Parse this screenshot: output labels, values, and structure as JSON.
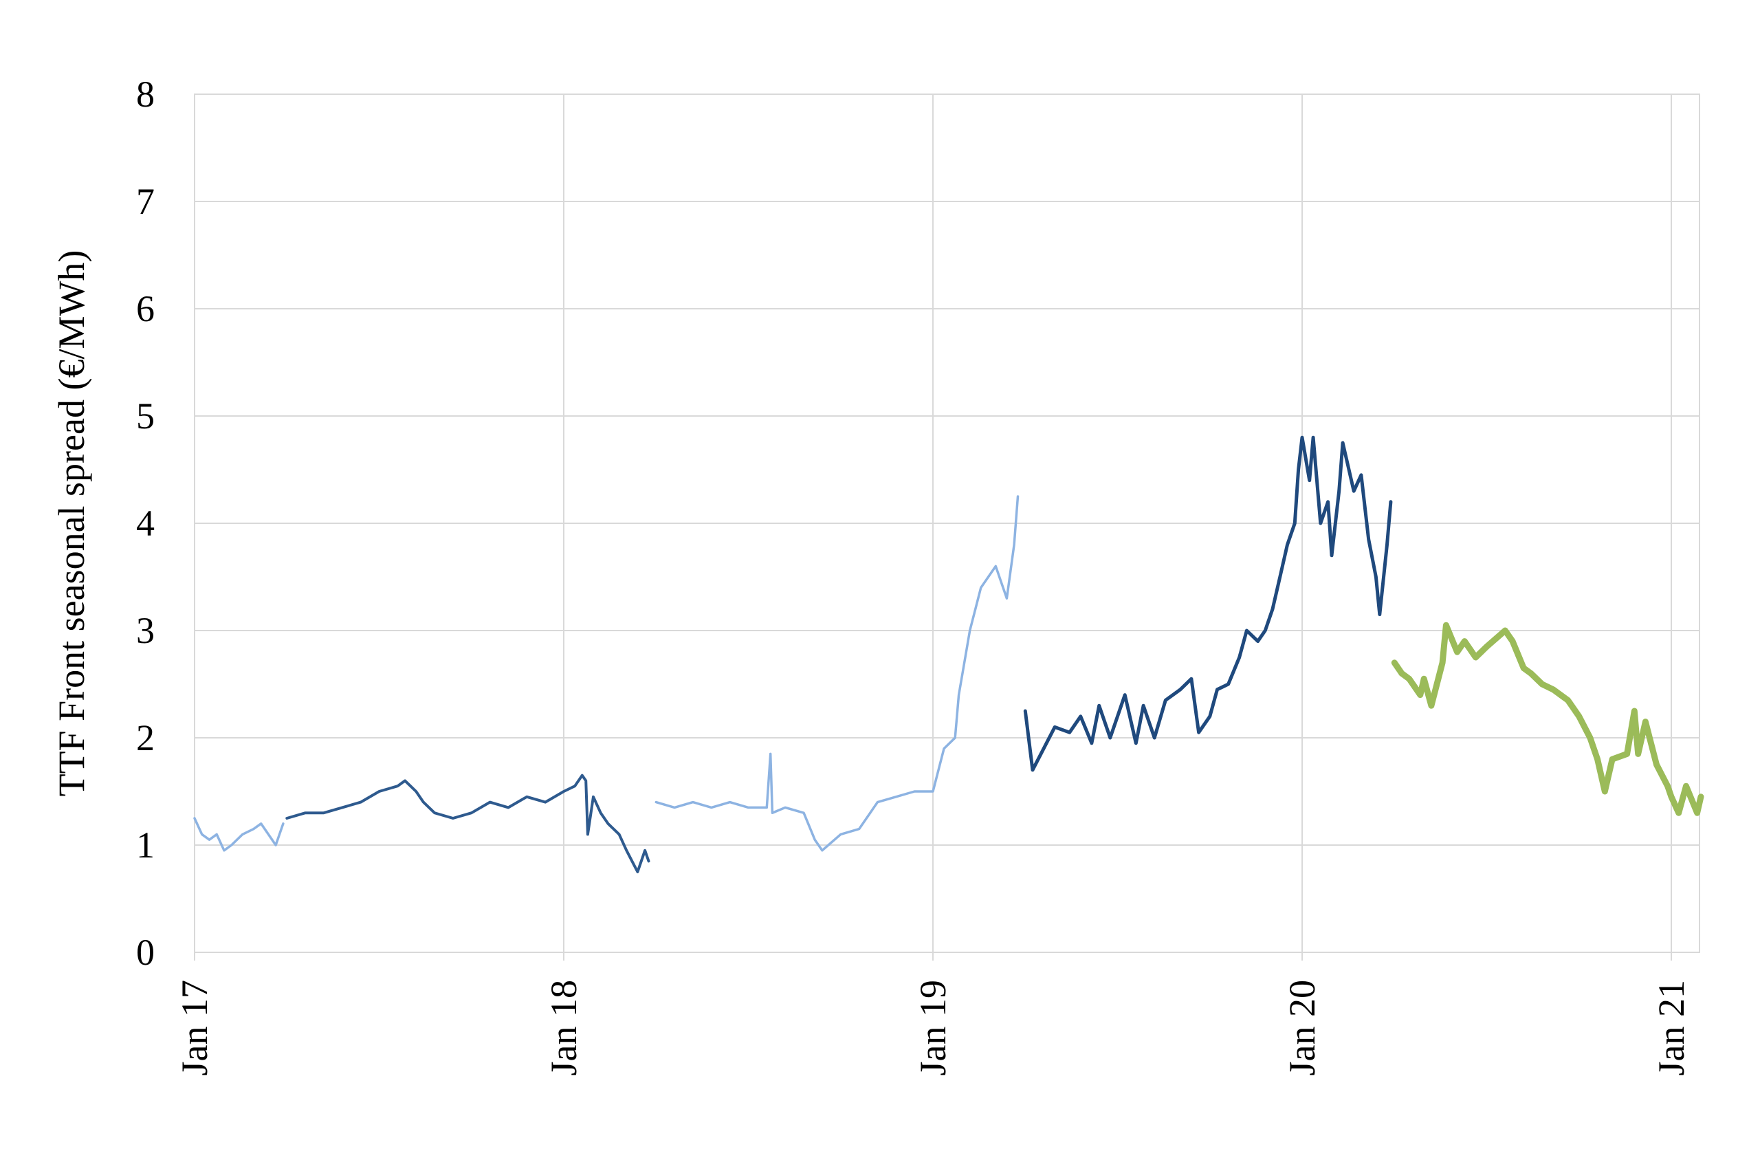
{
  "chart_data": {
    "type": "line",
    "title": "",
    "xlabel": "",
    "ylabel": "TTF Front seasonal spread (€/MWh)",
    "xlim": [
      2017.0,
      2021.08
    ],
    "ylim": [
      0,
      8
    ],
    "grid": true,
    "legend": "none",
    "yticks": [
      0,
      1,
      2,
      3,
      4,
      5,
      6,
      7,
      8
    ],
    "xticks": [
      {
        "value": 2017.0,
        "label": "Jan 17"
      },
      {
        "value": 2018.0,
        "label": "Jan 18"
      },
      {
        "value": 2019.0,
        "label": "Jan 19"
      },
      {
        "value": 2020.0,
        "label": "Jan 20"
      },
      {
        "value": 2021.0,
        "label": "Jan 21"
      }
    ],
    "series": [
      {
        "name": "segment-1",
        "color": "#8db3e2",
        "points": [
          [
            2017.0,
            1.25
          ],
          [
            2017.02,
            1.1
          ],
          [
            2017.04,
            1.05
          ],
          [
            2017.06,
            1.1
          ],
          [
            2017.08,
            0.95
          ],
          [
            2017.1,
            1.0
          ],
          [
            2017.13,
            1.1
          ],
          [
            2017.16,
            1.15
          ],
          [
            2017.18,
            1.2
          ],
          [
            2017.2,
            1.1
          ],
          [
            2017.22,
            1.0
          ],
          [
            2017.24,
            1.2
          ]
        ]
      },
      {
        "name": "segment-2",
        "color": "#2e5a8e",
        "points": [
          [
            2017.25,
            1.25
          ],
          [
            2017.3,
            1.3
          ],
          [
            2017.35,
            1.3
          ],
          [
            2017.4,
            1.35
          ],
          [
            2017.45,
            1.4
          ],
          [
            2017.5,
            1.5
          ],
          [
            2017.55,
            1.55
          ],
          [
            2017.57,
            1.6
          ],
          [
            2017.6,
            1.5
          ],
          [
            2017.62,
            1.4
          ],
          [
            2017.65,
            1.3
          ],
          [
            2017.7,
            1.25
          ],
          [
            2017.75,
            1.3
          ],
          [
            2017.8,
            1.4
          ],
          [
            2017.85,
            1.35
          ],
          [
            2017.9,
            1.45
          ],
          [
            2017.95,
            1.4
          ],
          [
            2018.0,
            1.5
          ],
          [
            2018.03,
            1.55
          ],
          [
            2018.05,
            1.65
          ],
          [
            2018.06,
            1.6
          ],
          [
            2018.065,
            1.1
          ],
          [
            2018.08,
            1.45
          ],
          [
            2018.1,
            1.3
          ],
          [
            2018.12,
            1.2
          ],
          [
            2018.15,
            1.1
          ],
          [
            2018.17,
            0.95
          ],
          [
            2018.2,
            0.75
          ],
          [
            2018.22,
            0.95
          ],
          [
            2018.23,
            0.85
          ]
        ]
      },
      {
        "name": "segment-3",
        "color": "#8db3e2",
        "points": [
          [
            2018.25,
            1.4
          ],
          [
            2018.3,
            1.35
          ],
          [
            2018.35,
            1.4
          ],
          [
            2018.4,
            1.35
          ],
          [
            2018.45,
            1.4
          ],
          [
            2018.5,
            1.35
          ],
          [
            2018.55,
            1.35
          ],
          [
            2018.56,
            1.85
          ],
          [
            2018.565,
            1.3
          ],
          [
            2018.6,
            1.35
          ],
          [
            2018.65,
            1.3
          ],
          [
            2018.68,
            1.05
          ],
          [
            2018.7,
            0.95
          ],
          [
            2018.75,
            1.1
          ],
          [
            2018.8,
            1.15
          ],
          [
            2018.83,
            1.3
          ],
          [
            2018.85,
            1.4
          ],
          [
            2018.9,
            1.45
          ],
          [
            2018.95,
            1.5
          ],
          [
            2019.0,
            1.5
          ],
          [
            2019.03,
            1.9
          ],
          [
            2019.06,
            2.0
          ],
          [
            2019.07,
            2.4
          ],
          [
            2019.1,
            3.0
          ],
          [
            2019.13,
            3.4
          ],
          [
            2019.17,
            3.6
          ],
          [
            2019.2,
            3.3
          ],
          [
            2019.22,
            3.8
          ],
          [
            2019.23,
            4.25
          ]
        ]
      },
      {
        "name": "segment-4",
        "color": "#1f497d",
        "points": [
          [
            2019.25,
            2.25
          ],
          [
            2019.27,
            1.7
          ],
          [
            2019.3,
            1.9
          ],
          [
            2019.33,
            2.1
          ],
          [
            2019.37,
            2.05
          ],
          [
            2019.4,
            2.2
          ],
          [
            2019.43,
            1.95
          ],
          [
            2019.45,
            2.3
          ],
          [
            2019.48,
            2.0
          ],
          [
            2019.52,
            2.4
          ],
          [
            2019.55,
            1.95
          ],
          [
            2019.57,
            2.3
          ],
          [
            2019.6,
            2.0
          ],
          [
            2019.63,
            2.35
          ],
          [
            2019.67,
            2.45
          ],
          [
            2019.7,
            2.55
          ],
          [
            2019.72,
            2.05
          ],
          [
            2019.75,
            2.2
          ],
          [
            2019.77,
            2.45
          ],
          [
            2019.8,
            2.5
          ],
          [
            2019.83,
            2.75
          ],
          [
            2019.85,
            3.0
          ],
          [
            2019.88,
            2.9
          ],
          [
            2019.9,
            3.0
          ],
          [
            2019.92,
            3.2
          ],
          [
            2019.94,
            3.5
          ],
          [
            2019.96,
            3.8
          ],
          [
            2019.98,
            4.0
          ],
          [
            2019.99,
            4.5
          ],
          [
            2020.0,
            4.8
          ],
          [
            2020.02,
            4.4
          ],
          [
            2020.03,
            4.8
          ],
          [
            2020.05,
            4.0
          ],
          [
            2020.07,
            4.2
          ],
          [
            2020.08,
            3.7
          ],
          [
            2020.1,
            4.3
          ],
          [
            2020.11,
            4.75
          ],
          [
            2020.14,
            4.3
          ],
          [
            2020.16,
            4.45
          ],
          [
            2020.18,
            3.85
          ],
          [
            2020.2,
            3.5
          ],
          [
            2020.21,
            3.15
          ],
          [
            2020.23,
            3.8
          ],
          [
            2020.24,
            4.2
          ]
        ]
      },
      {
        "name": "segment-5",
        "color": "#9bbb59",
        "points": [
          [
            2020.25,
            2.7
          ],
          [
            2020.27,
            2.6
          ],
          [
            2020.29,
            2.55
          ],
          [
            2020.32,
            2.4
          ],
          [
            2020.33,
            2.55
          ],
          [
            2020.35,
            2.3
          ],
          [
            2020.38,
            2.7
          ],
          [
            2020.39,
            3.05
          ],
          [
            2020.42,
            2.8
          ],
          [
            2020.44,
            2.9
          ],
          [
            2020.47,
            2.75
          ],
          [
            2020.5,
            2.85
          ],
          [
            2020.55,
            3.0
          ],
          [
            2020.57,
            2.9
          ],
          [
            2020.6,
            2.65
          ],
          [
            2020.62,
            2.6
          ],
          [
            2020.65,
            2.5
          ],
          [
            2020.68,
            2.45
          ],
          [
            2020.72,
            2.35
          ],
          [
            2020.75,
            2.2
          ],
          [
            2020.78,
            2.0
          ],
          [
            2020.8,
            1.8
          ],
          [
            2020.82,
            1.5
          ],
          [
            2020.84,
            1.8
          ],
          [
            2020.88,
            1.85
          ],
          [
            2020.9,
            2.25
          ],
          [
            2020.91,
            1.85
          ],
          [
            2020.93,
            2.15
          ],
          [
            2020.96,
            1.75
          ],
          [
            2020.99,
            1.55
          ],
          [
            2021.0,
            1.45
          ],
          [
            2021.02,
            1.3
          ],
          [
            2021.04,
            1.55
          ],
          [
            2021.07,
            1.3
          ],
          [
            2021.08,
            1.45
          ]
        ]
      }
    ]
  }
}
